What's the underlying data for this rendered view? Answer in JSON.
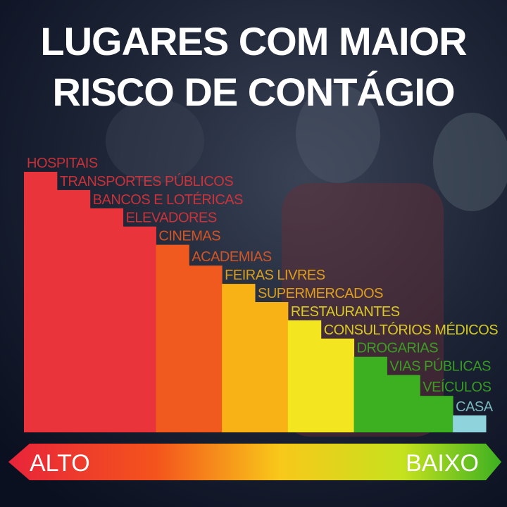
{
  "chart_data": {
    "type": "bar",
    "title": [
      "LUGARES COM MAIOR",
      "RISCO DE CONTÁGIO"
    ],
    "categories": [
      "HOSPITAIS",
      "TRANSPORTES PÚBLICOS",
      "BANCOS E LOTÉRICAS",
      "ELEVADORES",
      "CINEMAS",
      "ACADEMIAS",
      "FEIRAS LIVRES",
      "SUPERMERCADOS",
      "RESTAURANTES",
      "CONSULTÓRIOS MÉDICOS",
      "DROGARIAS",
      "VIAS PÚBLICAS",
      "VEÍCULOS",
      "CASA"
    ],
    "values": [
      100,
      93,
      86,
      79,
      72,
      64,
      57,
      50,
      43,
      36,
      29,
      22,
      14,
      6.5
    ],
    "colors": [
      "#e8343a",
      "#e8343a",
      "#e8343a",
      "#e8343a",
      "#f15a1f",
      "#f15a1f",
      "#f9b215",
      "#f9b215",
      "#f4e521",
      "#f4e521",
      "#3cb021",
      "#3cb021",
      "#3cb021",
      "#8fd3dc"
    ],
    "ylim": [
      0,
      100
    ],
    "arrow_labels": [
      "ALTO",
      "BAIXO"
    ]
  }
}
